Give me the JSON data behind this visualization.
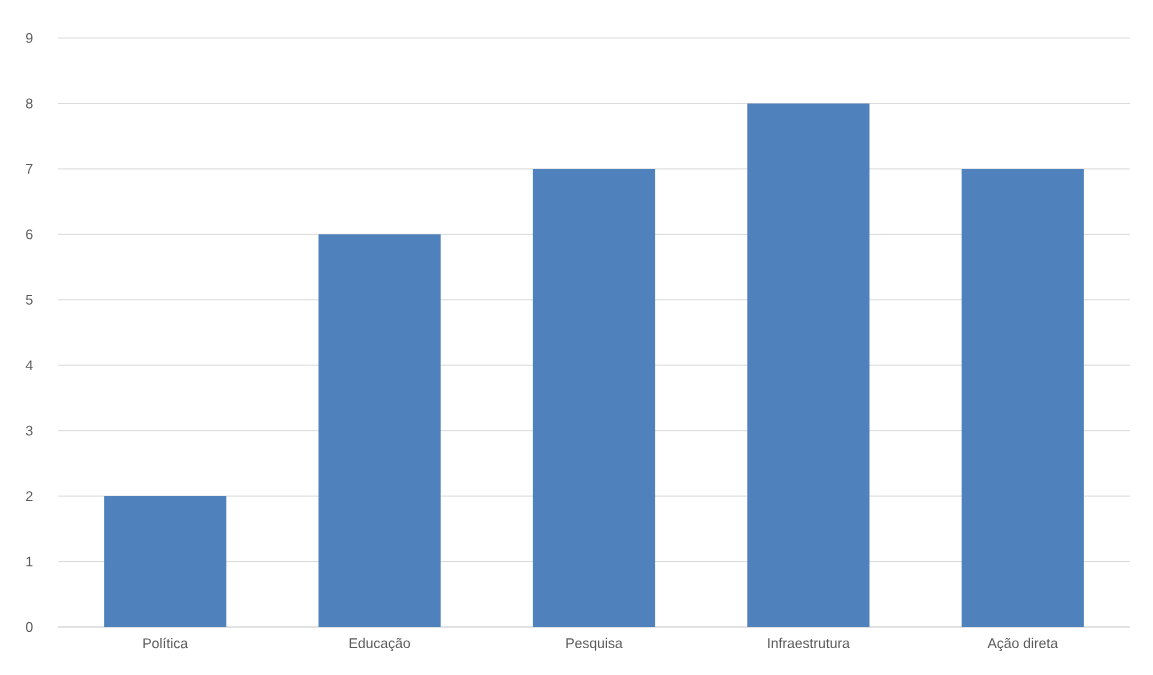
{
  "chart_data": {
    "type": "bar",
    "categories": [
      "Política",
      "Educação",
      "Pesquisa",
      "Infraestrutura",
      "Ação direta"
    ],
    "values": [
      2,
      6,
      7,
      8,
      7
    ],
    "color": "#4f81bd",
    "ylim": [
      0,
      9
    ],
    "yticks": [
      0,
      1,
      2,
      3,
      4,
      5,
      6,
      7,
      8,
      9
    ],
    "grid": "y"
  }
}
